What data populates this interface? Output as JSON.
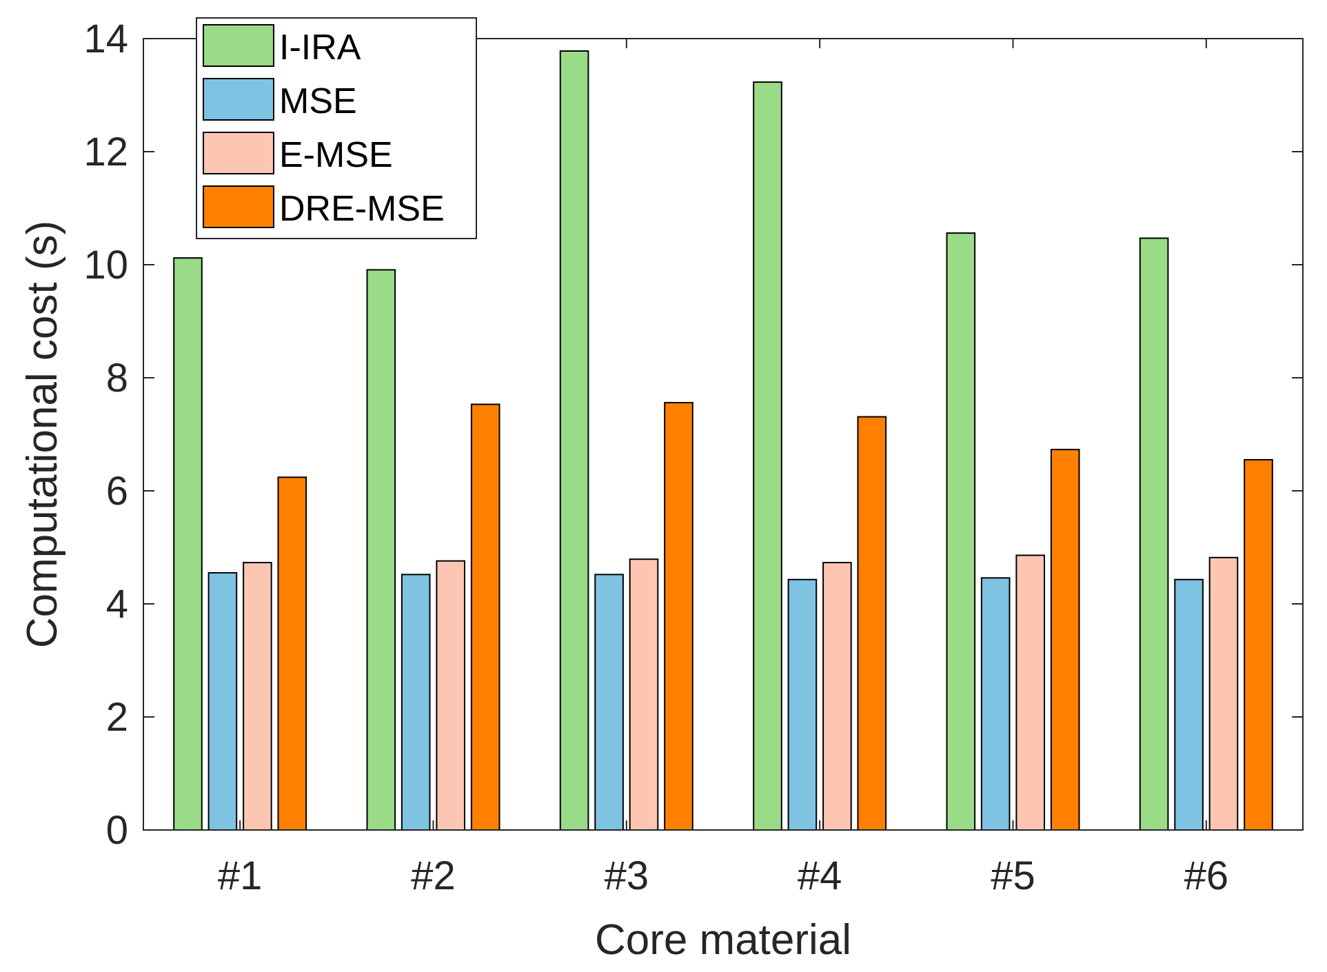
{
  "chart_data": {
    "type": "bar",
    "title": "",
    "xlabel": "Core material",
    "ylabel": "Computational cost (s)",
    "categories": [
      "#1",
      "#2",
      "#3",
      "#4",
      "#5",
      "#6"
    ],
    "ylim": [
      0,
      14
    ],
    "yticks": [
      0,
      2,
      4,
      6,
      8,
      10,
      12,
      14
    ],
    "grid": false,
    "legend_position": "top-left",
    "series": [
      {
        "name": "I-IRA",
        "color": "#9ADB87",
        "values": [
          10.12,
          9.91,
          13.78,
          13.23,
          10.56,
          10.47
        ]
      },
      {
        "name": "MSE",
        "color": "#7EC3E2",
        "values": [
          4.55,
          4.52,
          4.52,
          4.43,
          4.46,
          4.43
        ]
      },
      {
        "name": "E-MSE",
        "color": "#FDC6B2",
        "values": [
          4.73,
          4.76,
          4.79,
          4.73,
          4.86,
          4.82
        ]
      },
      {
        "name": "DRE-MSE",
        "color": "#FF8000",
        "values": [
          6.24,
          7.53,
          7.56,
          7.31,
          6.73,
          6.55
        ]
      }
    ]
  }
}
